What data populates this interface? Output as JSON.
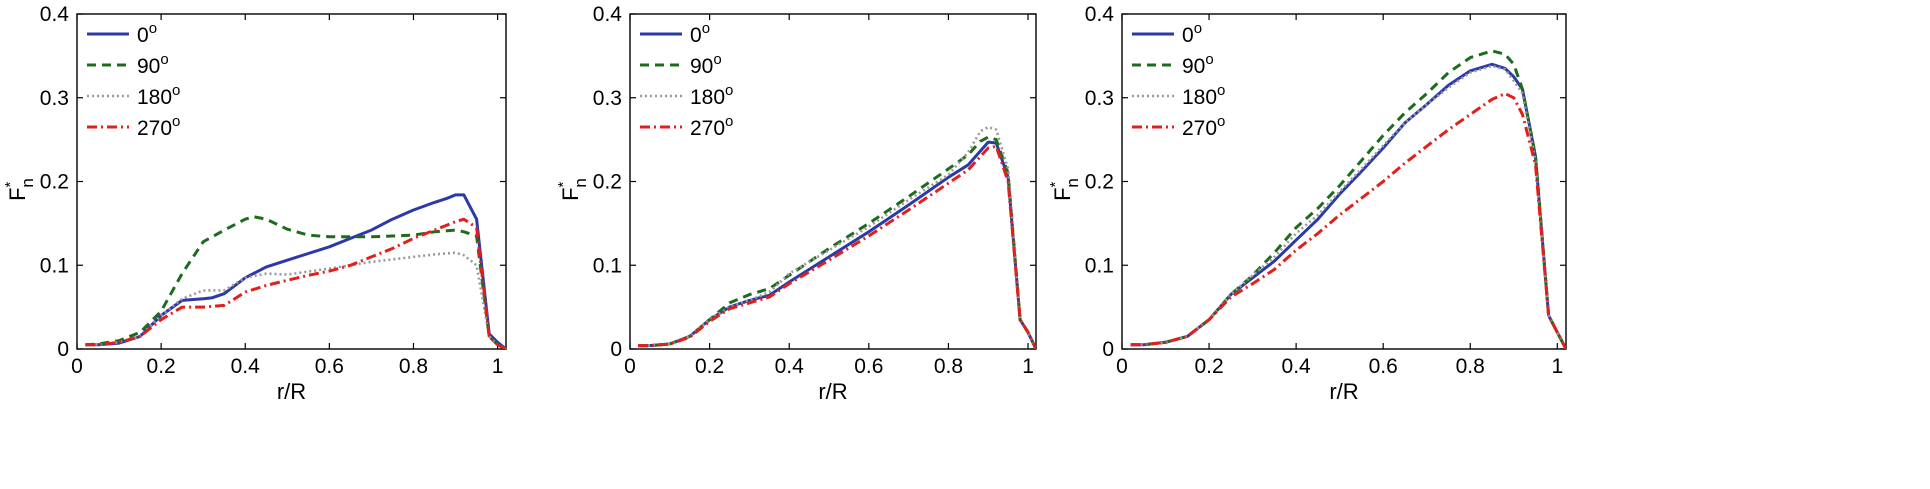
{
  "chart_data": [
    {
      "type": "line",
      "panel": "left",
      "xlabel": "r/R",
      "ylabel": "F",
      "ylabel_sup": "*",
      "ylabel_sub": "n",
      "xlim": [
        0,
        1.02
      ],
      "ylim": [
        0,
        0.4
      ],
      "xticks": [
        0,
        0.2,
        0.4,
        0.6,
        0.8,
        1
      ],
      "xtick_labels": [
        "0",
        "0.2",
        "0.4",
        "0.6",
        "0.8",
        "1"
      ],
      "yticks": [
        0,
        0.1,
        0.2,
        0.3,
        0.4
      ],
      "ytick_labels": [
        "0",
        "0.1",
        "0.2",
        "0.3",
        "0.4"
      ],
      "legend_position": "top-left",
      "series": [
        {
          "name": "0",
          "name_sup": "o",
          "color": "#2b3aa8",
          "dash": "solid",
          "x": [
            0.02,
            0.05,
            0.1,
            0.15,
            0.2,
            0.25,
            0.3,
            0.32,
            0.35,
            0.4,
            0.45,
            0.5,
            0.55,
            0.6,
            0.65,
            0.7,
            0.75,
            0.8,
            0.85,
            0.88,
            0.9,
            0.92,
            0.95,
            0.98,
            1.0,
            1.02
          ],
          "y": [
            0.005,
            0.005,
            0.007,
            0.015,
            0.04,
            0.058,
            0.06,
            0.061,
            0.066,
            0.085,
            0.098,
            0.106,
            0.114,
            0.122,
            0.132,
            0.142,
            0.155,
            0.166,
            0.175,
            0.18,
            0.184,
            0.184,
            0.155,
            0.018,
            0.008,
            0.0
          ]
        },
        {
          "name": "90",
          "name_sup": "o",
          "color": "#1e6b1e",
          "dash": "9,6",
          "x": [
            0.02,
            0.05,
            0.1,
            0.15,
            0.2,
            0.25,
            0.3,
            0.35,
            0.4,
            0.42,
            0.45,
            0.5,
            0.55,
            0.6,
            0.7,
            0.8,
            0.85,
            0.9,
            0.92,
            0.95,
            0.98,
            1.0,
            1.02
          ],
          "y": [
            0.005,
            0.006,
            0.01,
            0.02,
            0.045,
            0.09,
            0.128,
            0.142,
            0.155,
            0.158,
            0.155,
            0.143,
            0.136,
            0.134,
            0.134,
            0.136,
            0.14,
            0.142,
            0.14,
            0.135,
            0.015,
            0.005,
            0.0
          ]
        },
        {
          "name": "180",
          "name_sup": "o",
          "color": "#9a9a9a",
          "dash": "2,3",
          "x": [
            0.02,
            0.05,
            0.1,
            0.15,
            0.2,
            0.25,
            0.3,
            0.35,
            0.4,
            0.45,
            0.5,
            0.6,
            0.7,
            0.8,
            0.85,
            0.9,
            0.92,
            0.95,
            0.98,
            1.0,
            1.02
          ],
          "y": [
            0.005,
            0.005,
            0.008,
            0.015,
            0.04,
            0.06,
            0.07,
            0.07,
            0.085,
            0.09,
            0.089,
            0.096,
            0.104,
            0.11,
            0.113,
            0.115,
            0.112,
            0.1,
            0.015,
            0.005,
            0.0
          ]
        },
        {
          "name": "270",
          "name_sup": "o",
          "color": "#e0201b",
          "dash": "10,4,2,4",
          "x": [
            0.02,
            0.05,
            0.1,
            0.15,
            0.2,
            0.25,
            0.3,
            0.35,
            0.4,
            0.45,
            0.5,
            0.55,
            0.6,
            0.65,
            0.7,
            0.75,
            0.8,
            0.85,
            0.9,
            0.92,
            0.95,
            0.98,
            1.0,
            1.02
          ],
          "y": [
            0.005,
            0.005,
            0.008,
            0.015,
            0.035,
            0.05,
            0.05,
            0.052,
            0.068,
            0.076,
            0.082,
            0.088,
            0.093,
            0.1,
            0.11,
            0.12,
            0.132,
            0.142,
            0.152,
            0.155,
            0.145,
            0.015,
            0.005,
            0.0
          ]
        }
      ]
    },
    {
      "type": "line",
      "panel": "middle",
      "xlabel": "r/R",
      "ylabel": "F",
      "ylabel_sup": "*",
      "ylabel_sub": "n",
      "xlim": [
        0,
        1.02
      ],
      "ylim": [
        0,
        0.4
      ],
      "xticks": [
        0,
        0.2,
        0.4,
        0.6,
        0.8,
        1
      ],
      "xtick_labels": [
        "0",
        "0.2",
        "0.4",
        "0.6",
        "0.8",
        "1"
      ],
      "yticks": [
        0,
        0.1,
        0.2,
        0.3,
        0.4
      ],
      "ytick_labels": [
        "0",
        "0.1",
        "0.2",
        "0.3",
        "0.4"
      ],
      "legend_position": "top-left",
      "series": [
        {
          "name": "0",
          "name_sup": "o",
          "color": "#2b3aa8",
          "dash": "solid",
          "x": [
            0.02,
            0.05,
            0.1,
            0.15,
            0.2,
            0.25,
            0.3,
            0.35,
            0.4,
            0.5,
            0.6,
            0.7,
            0.8,
            0.85,
            0.9,
            0.92,
            0.95,
            0.98,
            1.0,
            1.02
          ],
          "y": [
            0.004,
            0.004,
            0.006,
            0.015,
            0.035,
            0.05,
            0.058,
            0.064,
            0.08,
            0.11,
            0.14,
            0.172,
            0.205,
            0.22,
            0.247,
            0.246,
            0.205,
            0.035,
            0.02,
            0.0
          ]
        },
        {
          "name": "90",
          "name_sup": "o",
          "color": "#1e6b1e",
          "dash": "9,6",
          "x": [
            0.02,
            0.05,
            0.1,
            0.15,
            0.2,
            0.25,
            0.3,
            0.35,
            0.4,
            0.5,
            0.6,
            0.7,
            0.8,
            0.85,
            0.88,
            0.9,
            0.92,
            0.95,
            0.98,
            1.0,
            1.02
          ],
          "y": [
            0.004,
            0.004,
            0.006,
            0.015,
            0.035,
            0.055,
            0.065,
            0.072,
            0.088,
            0.12,
            0.15,
            0.182,
            0.215,
            0.232,
            0.248,
            0.253,
            0.25,
            0.21,
            0.035,
            0.02,
            0.0
          ]
        },
        {
          "name": "180",
          "name_sup": "o",
          "color": "#9a9a9a",
          "dash": "2,3",
          "x": [
            0.02,
            0.05,
            0.1,
            0.15,
            0.2,
            0.25,
            0.3,
            0.35,
            0.4,
            0.5,
            0.6,
            0.7,
            0.8,
            0.85,
            0.88,
            0.9,
            0.92,
            0.95,
            0.98,
            1.0,
            1.02
          ],
          "y": [
            0.004,
            0.004,
            0.006,
            0.015,
            0.035,
            0.05,
            0.058,
            0.068,
            0.09,
            0.118,
            0.146,
            0.178,
            0.208,
            0.235,
            0.26,
            0.265,
            0.262,
            0.215,
            0.035,
            0.02,
            0.0
          ]
        },
        {
          "name": "270",
          "name_sup": "o",
          "color": "#e0201b",
          "dash": "10,4,2,4",
          "x": [
            0.02,
            0.05,
            0.1,
            0.15,
            0.2,
            0.25,
            0.3,
            0.35,
            0.4,
            0.5,
            0.6,
            0.7,
            0.8,
            0.85,
            0.9,
            0.92,
            0.95,
            0.98,
            1.0,
            1.02
          ],
          "y": [
            0.004,
            0.004,
            0.006,
            0.014,
            0.033,
            0.048,
            0.055,
            0.062,
            0.078,
            0.106,
            0.135,
            0.166,
            0.198,
            0.214,
            0.24,
            0.242,
            0.2,
            0.035,
            0.02,
            0.0
          ]
        }
      ]
    },
    {
      "type": "line",
      "panel": "right",
      "xlabel": "r/R",
      "ylabel": "F",
      "ylabel_sup": "*",
      "ylabel_sub": "n",
      "xlim": [
        0,
        1.02
      ],
      "ylim": [
        0,
        0.4
      ],
      "xticks": [
        0,
        0.2,
        0.4,
        0.6,
        0.8,
        1
      ],
      "xtick_labels": [
        "0",
        "0.2",
        "0.4",
        "0.6",
        "0.8",
        "1"
      ],
      "yticks": [
        0,
        0.1,
        0.2,
        0.3,
        0.4
      ],
      "ytick_labels": [
        "0",
        "0.1",
        "0.2",
        "0.3",
        "0.4"
      ],
      "legend_position": "top-left",
      "series": [
        {
          "name": "0",
          "name_sup": "o",
          "color": "#2b3aa8",
          "dash": "solid",
          "x": [
            0.02,
            0.05,
            0.1,
            0.15,
            0.2,
            0.25,
            0.3,
            0.35,
            0.4,
            0.45,
            0.5,
            0.55,
            0.6,
            0.65,
            0.7,
            0.75,
            0.8,
            0.85,
            0.88,
            0.9,
            0.92,
            0.95,
            0.98,
            1.0,
            1.02
          ],
          "y": [
            0.005,
            0.005,
            0.008,
            0.015,
            0.035,
            0.065,
            0.085,
            0.105,
            0.13,
            0.155,
            0.185,
            0.212,
            0.24,
            0.27,
            0.292,
            0.315,
            0.332,
            0.34,
            0.335,
            0.325,
            0.31,
            0.23,
            0.04,
            0.02,
            0.0
          ]
        },
        {
          "name": "90",
          "name_sup": "o",
          "color": "#1e6b1e",
          "dash": "9,6",
          "x": [
            0.02,
            0.05,
            0.1,
            0.15,
            0.2,
            0.25,
            0.3,
            0.35,
            0.4,
            0.45,
            0.5,
            0.55,
            0.6,
            0.65,
            0.7,
            0.75,
            0.8,
            0.85,
            0.88,
            0.9,
            0.92,
            0.95,
            0.98,
            1.0,
            1.02
          ],
          "y": [
            0.005,
            0.005,
            0.008,
            0.015,
            0.035,
            0.065,
            0.088,
            0.115,
            0.145,
            0.168,
            0.195,
            0.225,
            0.255,
            0.282,
            0.305,
            0.33,
            0.348,
            0.356,
            0.352,
            0.34,
            0.31,
            0.23,
            0.04,
            0.02,
            0.0
          ]
        },
        {
          "name": "180",
          "name_sup": "o",
          "color": "#9a9a9a",
          "dash": "2,3",
          "x": [
            0.02,
            0.05,
            0.1,
            0.15,
            0.2,
            0.25,
            0.3,
            0.35,
            0.4,
            0.45,
            0.5,
            0.55,
            0.6,
            0.65,
            0.7,
            0.75,
            0.8,
            0.85,
            0.88,
            0.9,
            0.92,
            0.95,
            0.98,
            1.0,
            1.02
          ],
          "y": [
            0.005,
            0.005,
            0.008,
            0.015,
            0.035,
            0.065,
            0.088,
            0.11,
            0.138,
            0.16,
            0.188,
            0.215,
            0.243,
            0.27,
            0.292,
            0.312,
            0.33,
            0.338,
            0.334,
            0.32,
            0.305,
            0.225,
            0.04,
            0.02,
            0.0
          ]
        },
        {
          "name": "270",
          "name_sup": "o",
          "color": "#e0201b",
          "dash": "10,4,2,4",
          "x": [
            0.02,
            0.05,
            0.1,
            0.15,
            0.2,
            0.25,
            0.3,
            0.35,
            0.4,
            0.45,
            0.5,
            0.55,
            0.6,
            0.65,
            0.7,
            0.75,
            0.8,
            0.85,
            0.88,
            0.9,
            0.92,
            0.95,
            0.98,
            1.0,
            1.02
          ],
          "y": [
            0.005,
            0.005,
            0.008,
            0.015,
            0.035,
            0.062,
            0.078,
            0.095,
            0.118,
            0.138,
            0.16,
            0.18,
            0.2,
            0.222,
            0.242,
            0.262,
            0.28,
            0.298,
            0.305,
            0.3,
            0.28,
            0.22,
            0.04,
            0.02,
            0.0
          ]
        }
      ]
    }
  ]
}
